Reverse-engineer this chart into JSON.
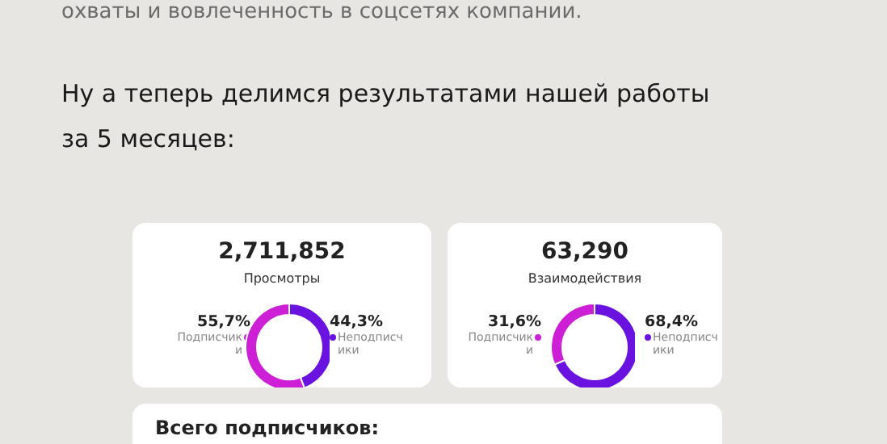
{
  "chart_data": [
    {
      "type": "donut",
      "title": "2,711,852",
      "subtitle": "Просмотры",
      "annotations": [
        "охваты и вовлеченность в соцсетях компании.",
        "Ну а теперь делимся результатами нашей работы за 5 месяцев:"
      ],
      "categories": [
        "Подписчики",
        "Неподписчики"
      ],
      "values": [
        55.7,
        44.3
      ],
      "colors": [
        "#cc1fd6",
        "#6a12e0"
      ],
      "value_labels": [
        "55,7%",
        "44,3%"
      ]
    },
    {
      "type": "donut",
      "title": "63,290",
      "subtitle": "Взаимодействия",
      "categories": [
        "Подписчики",
        "Неподписчики"
      ],
      "values": [
        31.6,
        68.4
      ],
      "colors": [
        "#cc1fd6",
        "#6a12e0"
      ],
      "value_labels": [
        "31,6%",
        "68,4%"
      ]
    },
    {
      "type": "other",
      "title": "Всего подписчиков:"
    }
  ]
}
